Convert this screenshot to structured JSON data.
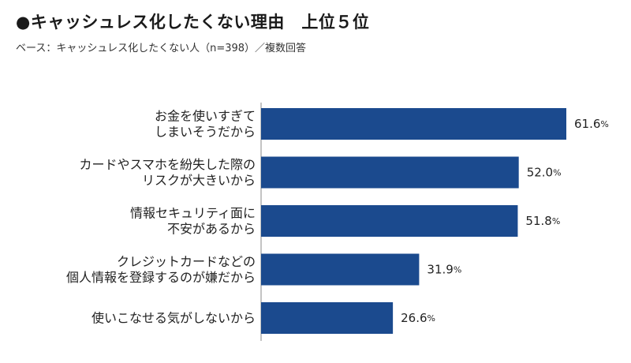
{
  "header": {
    "title": "●キャッシュレス化したくない理由　上位５位",
    "subtitle": "ベース：キャッシュレス化したくない人（n=398）／複数回答"
  },
  "chart_data": {
    "type": "bar",
    "orientation": "horizontal",
    "title": "●キャッシュレス化したくない理由　上位５位",
    "subtitle": "ベース：キャッシュレス化したくない人（n=398）／複数回答",
    "categories": [
      [
        "お金を使いすぎて",
        "しまいそうだから"
      ],
      [
        "カードやスマホを紛失した際の",
        "リスクが大きいから"
      ],
      [
        "情報セキュリティ面に",
        "不安があるから"
      ],
      [
        "クレジットカードなどの",
        "個人情報を登録するのが嫌だから"
      ],
      [
        "使いこなせる気がしないから"
      ]
    ],
    "values": [
      61.6,
      52.0,
      51.8,
      31.9,
      26.6
    ],
    "value_labels": [
      "61.6",
      "52.0",
      "51.8",
      "31.9",
      "26.6"
    ],
    "unit": "%",
    "xlim": [
      0,
      61.6
    ],
    "bar_color": "#1b4a8e",
    "grid": false,
    "xlabel": "",
    "ylabel": ""
  }
}
